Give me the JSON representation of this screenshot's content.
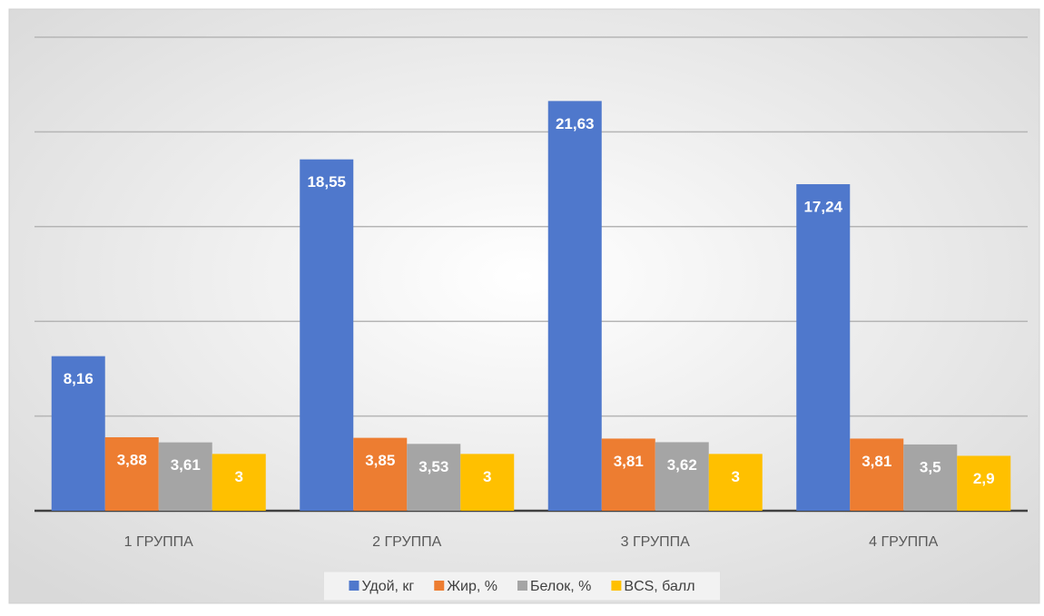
{
  "chart_data": {
    "type": "bar",
    "categories": [
      "1 ГРУППА",
      "2 ГРУППА",
      "3 ГРУППА",
      "4 ГРУППА"
    ],
    "series": [
      {
        "name": "Удой, кг",
        "color": "#4f78cc",
        "values": [
          8.16,
          18.55,
          21.63,
          17.24
        ],
        "value_labels": [
          "8,16",
          "18,55",
          "21,63",
          "17,24"
        ]
      },
      {
        "name": "Жир, %",
        "color": "#ed7d31",
        "values": [
          3.88,
          3.85,
          3.81,
          3.81
        ],
        "value_labels": [
          "3,88",
          "3,85",
          "3,81",
          "3,81"
        ]
      },
      {
        "name": "Белок, %",
        "color": "#a5a5a5",
        "values": [
          3.61,
          3.53,
          3.62,
          3.5
        ],
        "value_labels": [
          "3,61",
          "3,53",
          "3,62",
          "3,5"
        ]
      },
      {
        "name": "BCS, балл",
        "color": "#ffc000",
        "values": [
          3,
          3,
          3,
          2.9
        ],
        "value_labels": [
          "3",
          "3",
          "3",
          "2,9"
        ]
      }
    ],
    "ylim": [
      0,
      25
    ],
    "yticks": [
      0,
      5,
      10,
      15,
      20,
      25
    ],
    "grid": true,
    "legend": "bottom"
  }
}
